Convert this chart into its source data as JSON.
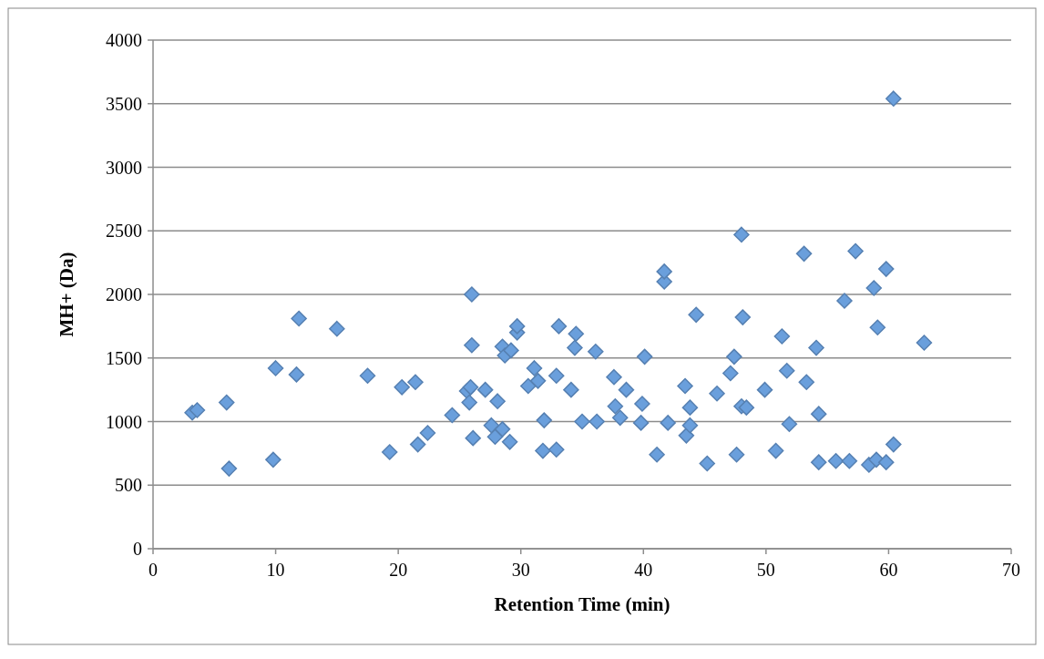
{
  "chart_data": {
    "type": "scatter",
    "xlabel": "Retention Time (min)",
    "ylabel": "MH+ (Da)",
    "xlim": [
      0,
      70
    ],
    "xticks": [
      0,
      10,
      20,
      30,
      40,
      50,
      60,
      70
    ],
    "ylim": [
      0,
      4000
    ],
    "yticks": [
      0,
      500,
      1000,
      1500,
      2000,
      2500,
      3000,
      3500,
      4000
    ],
    "grid": "y",
    "marker": "diamond",
    "series": [
      {
        "color": "#6a9fdc",
        "x": [
          3.2,
          3.6,
          6.0,
          6.2,
          9.8,
          10.0,
          11.7,
          11.9,
          15.0,
          17.5,
          19.3,
          20.3,
          21.4,
          21.6,
          22.4,
          24.4,
          25.6,
          25.8,
          25.9,
          26.0,
          26.0,
          26.1,
          27.1,
          27.6,
          27.9,
          28.1,
          28.5,
          28.5,
          28.7,
          29.1,
          29.2,
          29.7,
          29.7,
          30.6,
          31.1,
          31.4,
          31.8,
          31.9,
          32.9,
          32.9,
          33.1,
          34.1,
          34.4,
          34.5,
          35.0,
          36.1,
          36.2,
          37.6,
          37.7,
          38.1,
          38.6,
          39.8,
          39.9,
          40.1,
          41.1,
          41.7,
          41.7,
          42.0,
          44.3,
          43.4,
          43.5,
          43.8,
          43.8,
          45.2,
          46.0,
          47.1,
          47.4,
          47.6,
          48.0,
          48.1,
          48.0,
          48.4,
          49.9,
          50.8,
          51.3,
          51.7,
          51.9,
          53.1,
          53.3,
          54.1,
          54.3,
          54.3,
          55.7,
          56.4,
          56.8,
          57.3,
          58.4,
          58.8,
          59.0,
          59.1,
          59.8,
          59.8,
          60.4,
          60.4,
          62.9
        ],
        "values": [
          1070,
          1090,
          1150,
          630,
          700,
          1420,
          1370,
          1810,
          1730,
          1360,
          760,
          1270,
          1310,
          820,
          910,
          1050,
          1240,
          1150,
          1270,
          2000,
          1600,
          870,
          1250,
          970,
          880,
          1160,
          1590,
          940,
          1520,
          840,
          1560,
          1700,
          1750,
          1280,
          1420,
          1320,
          770,
          1010,
          780,
          1360,
          1750,
          1250,
          1580,
          1690,
          1000,
          1550,
          1000,
          1350,
          1120,
          1030,
          1250,
          990,
          1140,
          1510,
          740,
          2100,
          2180,
          990,
          1840,
          1280,
          890,
          1110,
          970,
          670,
          1220,
          1380,
          1510,
          740,
          2470,
          1820,
          1120,
          1110,
          1250,
          770,
          1670,
          1400,
          980,
          2320,
          1310,
          1580,
          1060,
          680,
          690,
          1950,
          690,
          2340,
          660,
          2050,
          700,
          1740,
          680,
          2200,
          820,
          3540,
          1620
        ]
      }
    ]
  }
}
